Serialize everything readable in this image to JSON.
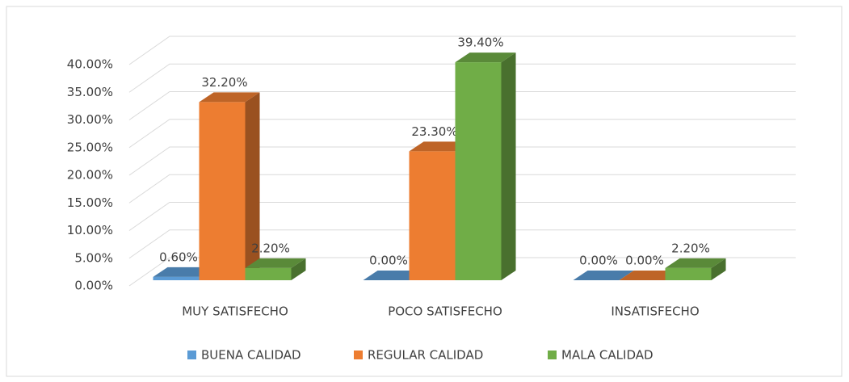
{
  "chart_data": {
    "type": "bar3d",
    "categories": [
      "MUY SATISFECHO",
      "POCO SATISFECHO",
      "INSATISFECHO"
    ],
    "series": [
      {
        "name": "BUENA CALIDAD",
        "color": "#5b9bd5",
        "values": [
          0.6,
          0,
          0
        ],
        "value_labels": [
          "0.60%",
          "0.00%",
          "0.00%"
        ]
      },
      {
        "name": "REGULAR CALIDAD",
        "color": "#ed7d31",
        "values": [
          32.2,
          23.3,
          0
        ],
        "value_labels": [
          "32.20%",
          "23.30%",
          "0.00%"
        ]
      },
      {
        "name": "MALA CALIDAD",
        "color": "#70ad47",
        "values": [
          2.2,
          39.4,
          2.2
        ],
        "value_labels": [
          "2.20%",
          "39.40%",
          "2.20%"
        ]
      }
    ],
    "ylim": [
      0,
      40
    ],
    "yticks": [
      {
        "value": 0,
        "label": "0.00%"
      },
      {
        "value": 5,
        "label": "5.00%"
      },
      {
        "value": 10,
        "label": "10.00%"
      },
      {
        "value": 15,
        "label": "15.00%"
      },
      {
        "value": 20,
        "label": "20.00%"
      },
      {
        "value": 25,
        "label": "25.00%"
      },
      {
        "value": 30,
        "label": "30.00%"
      },
      {
        "value": 35,
        "label": "35.00%"
      },
      {
        "value": 40,
        "label": "40.00%"
      }
    ],
    "grid": true,
    "legend": "bottom"
  }
}
